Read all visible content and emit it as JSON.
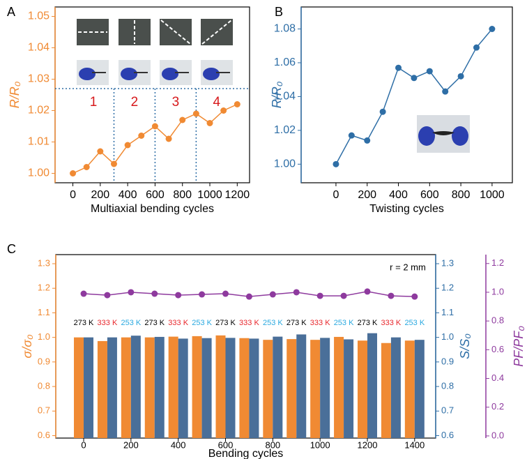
{
  "chart_data": [
    {
      "type": "line",
      "panel": "A",
      "xlabel": "Multiaxial bending cycles",
      "ylabel": "R/R₀",
      "x": [
        0,
        100,
        200,
        300,
        400,
        500,
        600,
        700,
        800,
        900,
        1000,
        1100,
        1200
      ],
      "values": [
        1.0,
        1.002,
        1.007,
        1.003,
        1.009,
        1.012,
        1.015,
        1.011,
        1.017,
        1.019,
        1.016,
        1.02,
        1.022
      ],
      "color": "#f08a33",
      "y_color": "#f08a33",
      "xlim": [
        -130,
        1290
      ],
      "ylim": [
        0.997,
        1.053
      ],
      "xticks": [
        0,
        200,
        400,
        600,
        800,
        1000,
        1200
      ],
      "yticks": [
        {
          "value": 1,
          "label": "1.00"
        },
        1.01,
        1.02,
        1.03,
        1.04,
        1.05
      ],
      "dividers": [
        300,
        600,
        900
      ],
      "divider_level": 1.027,
      "divider_color": "#2e6ea6",
      "annotations": [
        "1",
        "2",
        "3",
        "4"
      ],
      "annotation_color": "#d7191c"
    },
    {
      "type": "line",
      "panel": "B",
      "xlabel": "Twisting cycles",
      "ylabel": "R/R₀",
      "x": [
        0,
        100,
        200,
        300,
        400,
        500,
        600,
        700,
        800,
        900,
        1000
      ],
      "values": [
        1.0,
        1.017,
        1.014,
        1.031,
        1.057,
        1.051,
        1.055,
        1.043,
        1.052,
        1.069,
        1.08
      ],
      "color": "#2e6ea6",
      "y_color": "#2e6ea6",
      "xlim": [
        -223,
        1130
      ],
      "ylim": [
        0.989,
        1.093
      ],
      "xticks": [
        0,
        200,
        400,
        600,
        800,
        1000
      ],
      "yticks": [
        {
          "value": 1,
          "label": "1.00"
        },
        1.02,
        1.04,
        1.06,
        1.08
      ]
    },
    {
      "type": "bar",
      "panel": "C",
      "xlabel": "Bending cycles",
      "ylabel": "σ/σ₀",
      "y2label": "S/S₀",
      "y3label": "PF/PF₀",
      "annotation": "r = 2 mm",
      "x": [
        0,
        100,
        200,
        300,
        400,
        500,
        600,
        700,
        800,
        900,
        1000,
        1100,
        1200,
        1300,
        1400
      ],
      "series": [
        {
          "type": "bar",
          "axis": "y",
          "color": "#f08a33",
          "values": [
            1.0,
            0.985,
            1.0,
            1.0,
            1.003,
            1.005,
            1.008,
            0.997,
            0.99,
            0.993,
            0.99,
            1.002,
            0.987,
            0.977,
            0.987
          ]
        },
        {
          "type": "bar",
          "axis": "y2",
          "color": "#4a6f99",
          "values": [
            1.0,
            1.0,
            1.007,
            1.002,
            0.995,
            0.997,
            0.998,
            0.995,
            1.003,
            1.012,
            0.998,
            0.992,
            1.017,
            1.0,
            0.99
          ]
        },
        {
          "type": "line",
          "axis": "y3",
          "color": "#8e3a9e",
          "values": [
            0.99,
            0.98,
            1.0,
            0.99,
            0.98,
            0.985,
            0.99,
            0.97,
            0.985,
            1.0,
            0.975,
            0.975,
            1.005,
            0.975,
            0.97
          ]
        }
      ],
      "group_labels": [
        "273 K",
        "333 K",
        "253 K",
        "273 K",
        "333 K",
        "253 K",
        "273 K",
        "333 K",
        "253 K",
        "273 K",
        "333 K",
        "253 K",
        "273 K",
        "333 K",
        "253 K"
      ],
      "group_label_colors": [
        "#000000",
        "#e8262b",
        "#2aa9e0"
      ],
      "y_color": "#f08a33",
      "y2_color": "#2e6ea6",
      "y3_color": "#8e3a9e",
      "xlim": [
        -118,
        1489
      ],
      "ylim": [
        0.59,
        1.337
      ],
      "y2lim": [
        0.59,
        1.337
      ],
      "y3lim": [
        -0.015,
        1.262
      ],
      "xticks": [
        0,
        200,
        400,
        600,
        800,
        1000,
        1200,
        1400
      ],
      "yticks": [
        0.6,
        0.7,
        0.8,
        0.9,
        {
          "value": 1,
          "label": "1.0"
        },
        1.1,
        1.2,
        1.3
      ],
      "y2ticks": [
        0.6,
        0.7,
        0.8,
        0.9,
        {
          "value": 1,
          "label": "1.0"
        },
        1.1,
        1.2,
        1.3
      ],
      "y3ticks": [
        {
          "value": 0,
          "label": "0.0"
        },
        0.2,
        0.4,
        0.6,
        0.8,
        {
          "value": 1,
          "label": "1.0"
        },
        1.2
      ]
    }
  ]
}
